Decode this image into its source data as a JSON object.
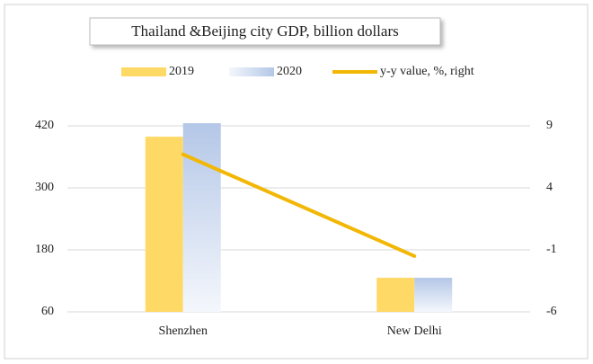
{
  "chart_data": {
    "type": "bar",
    "title": "Thailand &Beijing city GDP, billion dollars",
    "categories": [
      "Shenzhen",
      "New Delhi"
    ],
    "series": [
      {
        "name": "2019",
        "color": "#ffd966",
        "values": [
          399,
          126
        ]
      },
      {
        "name": "2020",
        "color": "#b4c7e7",
        "values": [
          425,
          126
        ]
      },
      {
        "name": "y-y value, %, right",
        "color": "#f2b705",
        "type": "line",
        "axis": "y2",
        "values": [
          6.7,
          -1.5
        ]
      }
    ],
    "ylim": [
      60,
      420
    ],
    "yticks": [
      60,
      180,
      300,
      420
    ],
    "y2lim": [
      -6,
      9
    ],
    "y2ticks": [
      -6,
      -1,
      4,
      9
    ],
    "grid": true,
    "legend": "top"
  }
}
